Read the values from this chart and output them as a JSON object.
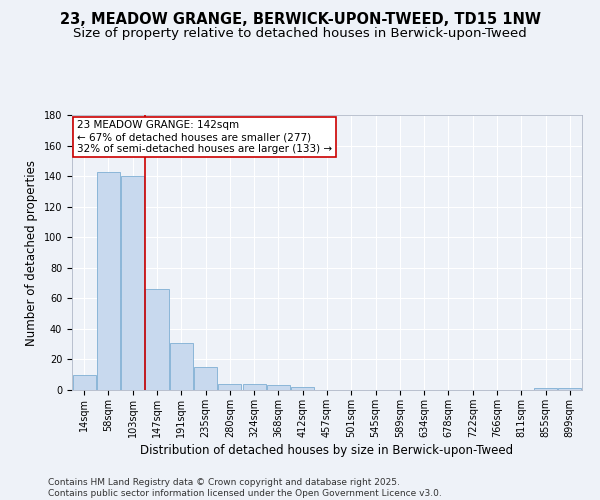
{
  "title": "23, MEADOW GRANGE, BERWICK-UPON-TWEED, TD15 1NW",
  "subtitle": "Size of property relative to detached houses in Berwick-upon-Tweed",
  "xlabel": "Distribution of detached houses by size in Berwick-upon-Tweed",
  "ylabel": "Number of detached properties",
  "categories": [
    "14sqm",
    "58sqm",
    "103sqm",
    "147sqm",
    "191sqm",
    "235sqm",
    "280sqm",
    "324sqm",
    "368sqm",
    "412sqm",
    "457sqm",
    "501sqm",
    "545sqm",
    "589sqm",
    "634sqm",
    "678sqm",
    "722sqm",
    "766sqm",
    "811sqm",
    "855sqm",
    "899sqm"
  ],
  "values": [
    10,
    143,
    140,
    66,
    31,
    15,
    4,
    4,
    3,
    2,
    0,
    0,
    0,
    0,
    0,
    0,
    0,
    0,
    0,
    1,
    1
  ],
  "bar_color": "#c8d9ee",
  "bar_edge_color": "#7eafd4",
  "background_color": "#eef2f8",
  "grid_color": "#ffffff",
  "vline_x_pos": 2.5,
  "vline_color": "#cc0000",
  "annotation_text": "23 MEADOW GRANGE: 142sqm\n← 67% of detached houses are smaller (277)\n32% of semi-detached houses are larger (133) →",
  "annotation_box_color": "#ffffff",
  "annotation_box_edge": "#cc0000",
  "ylim": [
    0,
    180
  ],
  "yticks": [
    0,
    20,
    40,
    60,
    80,
    100,
    120,
    140,
    160,
    180
  ],
  "footer": "Contains HM Land Registry data © Crown copyright and database right 2025.\nContains public sector information licensed under the Open Government Licence v3.0.",
  "title_fontsize": 10.5,
  "subtitle_fontsize": 9.5,
  "label_fontsize": 8.5,
  "tick_fontsize": 7,
  "annot_fontsize": 7.5,
  "footer_fontsize": 6.5
}
